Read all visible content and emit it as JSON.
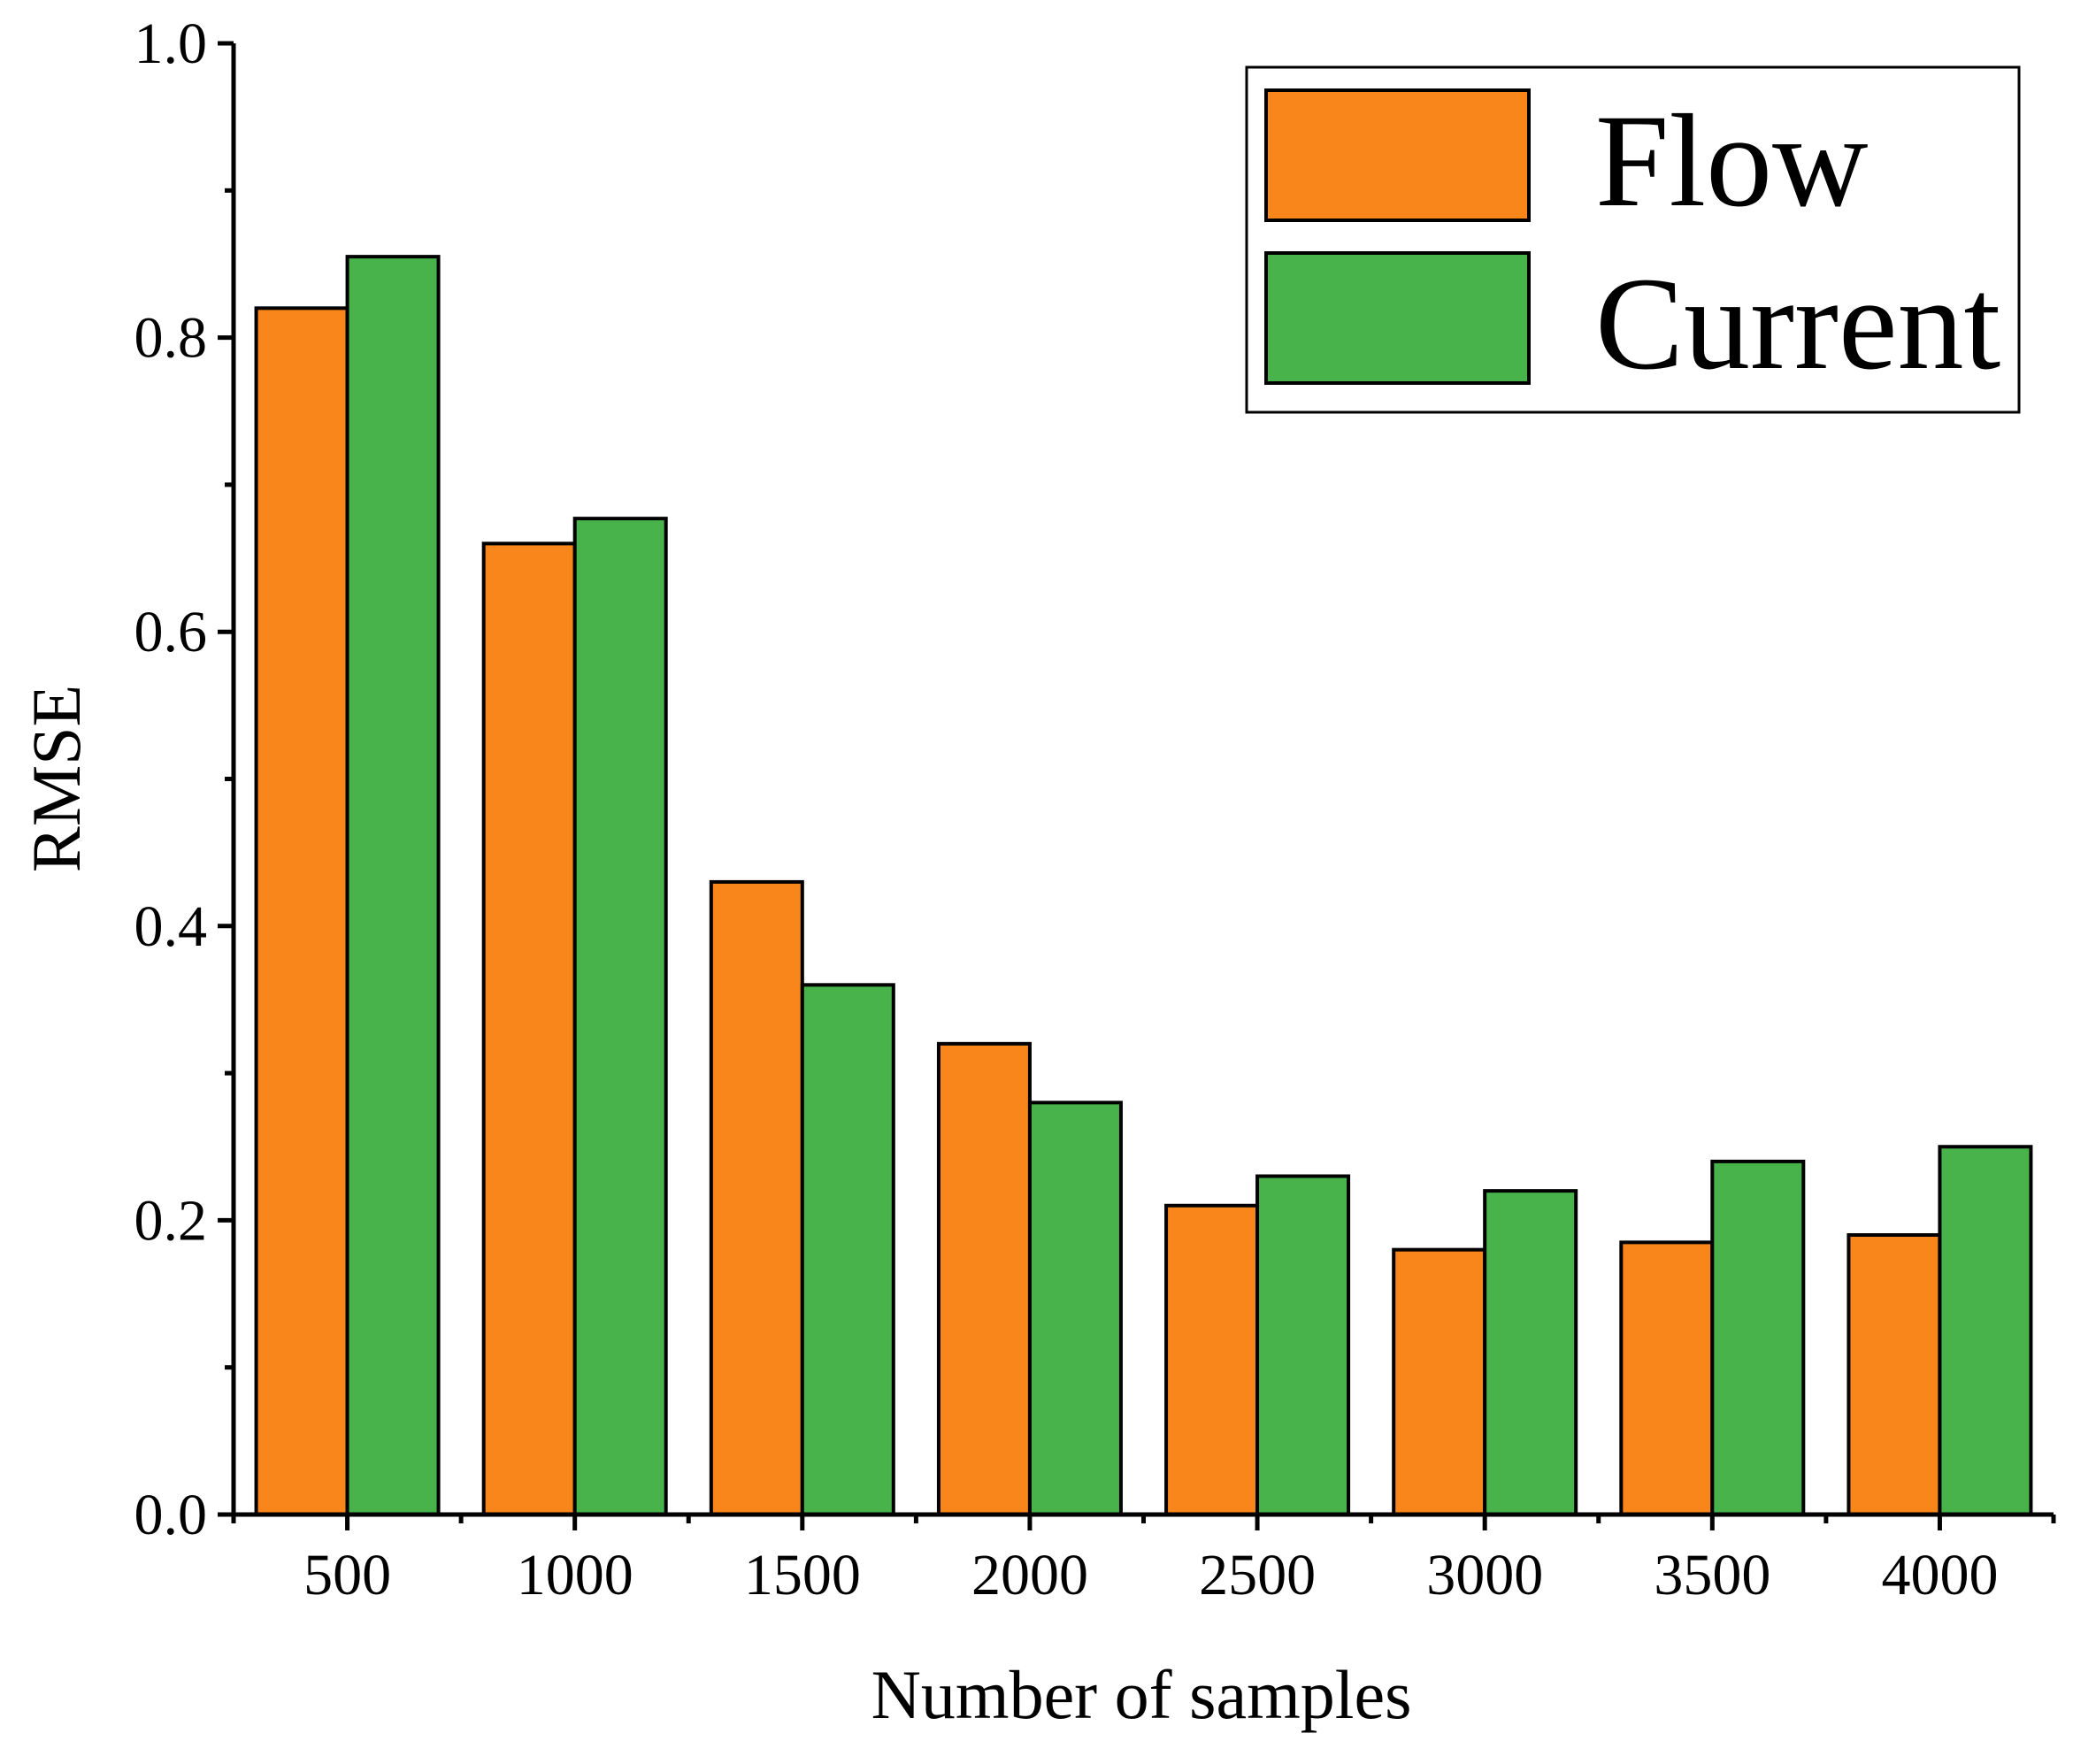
{
  "chart_data": {
    "type": "bar",
    "title": "",
    "xlabel": "Number of samples",
    "ylabel": "RMSE",
    "categories": [
      "500",
      "1000",
      "1500",
      "2000",
      "2500",
      "3000",
      "3500",
      "4000"
    ],
    "series": [
      {
        "name": "Flow",
        "color": "#f9861a",
        "values": [
          0.82,
          0.66,
          0.43,
          0.32,
          0.21,
          0.18,
          0.185,
          0.19
        ]
      },
      {
        "name": "Current",
        "color": "#48b34a",
        "values": [
          0.855,
          0.677,
          0.36,
          0.28,
          0.23,
          0.22,
          0.24,
          0.25
        ]
      }
    ],
    "ylim": [
      0,
      1.0
    ],
    "yticks": [
      "0.0",
      "0.2",
      "0.4",
      "0.6",
      "0.8",
      "1.0"
    ],
    "grid": false,
    "legend_position": "top-right"
  }
}
